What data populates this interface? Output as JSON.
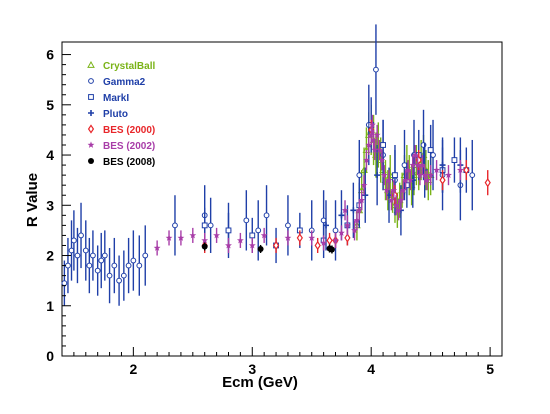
{
  "chart_data": {
    "type": "scatter",
    "title": "",
    "xlabel": "Ecm (GeV)",
    "ylabel": "R Value",
    "xlim": [
      1.4,
      5.1
    ],
    "ylim": [
      0,
      6.25
    ],
    "xticks": [
      2,
      3,
      4,
      5
    ],
    "yticks": [
      0,
      1,
      2,
      3,
      4,
      5,
      6
    ],
    "grid": false,
    "legend_position": "top-left",
    "series": [
      {
        "name": "CrystalBall",
        "color": "#7ab317",
        "marker": "triangle",
        "points": [
          [
            3.88,
            2.6,
            0.3
          ],
          [
            3.9,
            2.9,
            0.35
          ],
          [
            3.92,
            3.3,
            0.4
          ],
          [
            3.94,
            3.7,
            0.45
          ],
          [
            3.96,
            4.1,
            0.45
          ],
          [
            3.98,
            4.4,
            0.45
          ],
          [
            4.0,
            4.5,
            0.5
          ],
          [
            4.02,
            4.3,
            0.5
          ],
          [
            4.04,
            4.0,
            0.45
          ],
          [
            4.06,
            4.2,
            0.45
          ],
          [
            4.08,
            3.9,
            0.45
          ],
          [
            4.1,
            3.7,
            0.4
          ],
          [
            4.12,
            3.5,
            0.4
          ],
          [
            4.14,
            3.3,
            0.4
          ],
          [
            4.16,
            3.6,
            0.4
          ],
          [
            4.18,
            3.2,
            0.35
          ],
          [
            4.2,
            3.0,
            0.35
          ],
          [
            4.22,
            2.9,
            0.35
          ],
          [
            4.24,
            3.1,
            0.35
          ],
          [
            4.26,
            3.3,
            0.35
          ],
          [
            4.28,
            3.6,
            0.4
          ],
          [
            4.3,
            3.8,
            0.4
          ],
          [
            4.32,
            3.6,
            0.4
          ],
          [
            4.34,
            3.4,
            0.4
          ],
          [
            4.36,
            3.6,
            0.4
          ],
          [
            4.38,
            3.8,
            0.4
          ],
          [
            4.4,
            3.7,
            0.4
          ],
          [
            4.42,
            3.9,
            0.4
          ],
          [
            4.44,
            4.0,
            0.4
          ],
          [
            4.46,
            3.7,
            0.4
          ],
          [
            4.48,
            3.5,
            0.4
          ],
          [
            4.5,
            3.6,
            0.4
          ]
        ]
      },
      {
        "name": "Gamma2",
        "color": "#1f3fa8",
        "marker": "circle",
        "points": [
          [
            1.42,
            1.45,
            0.45
          ],
          [
            1.45,
            1.8,
            0.55
          ],
          [
            1.48,
            2.1,
            0.6
          ],
          [
            1.5,
            2.3,
            0.6
          ],
          [
            1.53,
            2.0,
            0.55
          ],
          [
            1.56,
            2.4,
            0.65
          ],
          [
            1.6,
            2.1,
            0.6
          ],
          [
            1.63,
            1.8,
            0.55
          ],
          [
            1.66,
            2.0,
            0.5
          ],
          [
            1.7,
            1.7,
            0.5
          ],
          [
            1.73,
            1.9,
            0.55
          ],
          [
            1.76,
            2.0,
            0.5
          ],
          [
            1.8,
            1.6,
            0.55
          ],
          [
            1.84,
            1.8,
            0.55
          ],
          [
            1.88,
            1.5,
            0.5
          ],
          [
            1.92,
            1.6,
            0.5
          ],
          [
            1.96,
            1.8,
            0.55
          ],
          [
            2.0,
            1.9,
            0.6
          ],
          [
            2.05,
            1.8,
            0.6
          ],
          [
            2.1,
            2.0,
            0.6
          ],
          [
            2.35,
            2.6,
            0.6
          ],
          [
            2.6,
            2.8,
            0.6
          ],
          [
            2.65,
            2.6,
            0.55
          ],
          [
            2.8,
            2.5,
            0.55
          ],
          [
            2.95,
            2.7,
            0.6
          ],
          [
            3.05,
            2.5,
            0.6
          ],
          [
            3.12,
            2.8,
            0.6
          ],
          [
            3.3,
            2.6,
            0.6
          ],
          [
            3.5,
            2.5,
            0.6
          ],
          [
            3.6,
            2.7,
            0.6
          ],
          [
            3.7,
            2.5,
            0.6
          ],
          [
            3.9,
            3.6,
            0.7
          ],
          [
            3.98,
            4.6,
            0.8
          ],
          [
            4.04,
            5.7,
            0.9
          ],
          [
            4.1,
            4.0,
            0.7
          ],
          [
            4.2,
            3.5,
            0.7
          ],
          [
            4.28,
            3.8,
            0.7
          ],
          [
            4.36,
            4.0,
            0.7
          ],
          [
            4.44,
            4.2,
            0.7
          ],
          [
            4.52,
            4.0,
            0.7
          ],
          [
            4.6,
            3.6,
            0.7
          ],
          [
            4.75,
            3.4,
            0.7
          ],
          [
            4.85,
            3.6,
            0.7
          ]
        ]
      },
      {
        "name": "MarkI",
        "color": "#1f3fa8",
        "marker": "square",
        "points": [
          [
            2.6,
            2.6,
            0.35
          ],
          [
            2.8,
            2.5,
            0.35
          ],
          [
            3.0,
            2.4,
            0.35
          ],
          [
            3.2,
            2.2,
            0.35
          ],
          [
            3.4,
            2.5,
            0.35
          ],
          [
            3.6,
            2.3,
            0.35
          ],
          [
            3.8,
            2.6,
            0.4
          ],
          [
            3.9,
            3.0,
            0.45
          ],
          [
            4.0,
            4.6,
            0.55
          ],
          [
            4.1,
            4.2,
            0.5
          ],
          [
            4.2,
            3.6,
            0.5
          ],
          [
            4.3,
            3.4,
            0.45
          ],
          [
            4.4,
            4.0,
            0.5
          ],
          [
            4.5,
            4.1,
            0.5
          ],
          [
            4.6,
            3.7,
            0.45
          ],
          [
            4.7,
            3.9,
            0.45
          ],
          [
            4.8,
            3.7,
            0.45
          ]
        ]
      },
      {
        "name": "Pluto",
        "color": "#1f3fa8",
        "marker": "cross",
        "points": [
          [
            3.62,
            2.6,
            0.5
          ],
          [
            3.75,
            2.8,
            0.5
          ],
          [
            3.85,
            2.9,
            0.55
          ],
          [
            3.95,
            3.2,
            0.55
          ],
          [
            4.05,
            3.6,
            0.6
          ],
          [
            4.15,
            3.2,
            0.55
          ],
          [
            4.25,
            2.9,
            0.5
          ],
          [
            4.35,
            3.5,
            0.55
          ],
          [
            4.45,
            3.7,
            0.55
          ],
          [
            4.6,
            3.8,
            0.55
          ],
          [
            4.75,
            3.8,
            0.55
          ]
        ]
      },
      {
        "name": "BES (2000)",
        "color": "#e8262a",
        "marker": "diamond",
        "points": [
          [
            2.6,
            2.2,
            0.15
          ],
          [
            3.2,
            2.2,
            0.15
          ],
          [
            3.4,
            2.35,
            0.15
          ],
          [
            3.55,
            2.2,
            0.15
          ],
          [
            3.65,
            2.3,
            0.15
          ],
          [
            3.7,
            2.3,
            0.15
          ],
          [
            3.8,
            2.35,
            0.15
          ],
          [
            4.0,
            4.5,
            0.2
          ],
          [
            4.2,
            3.2,
            0.2
          ],
          [
            4.4,
            3.9,
            0.2
          ],
          [
            4.6,
            3.5,
            0.2
          ],
          [
            4.8,
            3.7,
            0.2
          ],
          [
            4.98,
            3.45,
            0.25
          ]
        ]
      },
      {
        "name": "BES (2002)",
        "color": "#a83da8",
        "marker": "star",
        "points": [
          [
            2.2,
            2.15,
            0.15
          ],
          [
            2.3,
            2.35,
            0.15
          ],
          [
            2.4,
            2.35,
            0.15
          ],
          [
            2.5,
            2.4,
            0.15
          ],
          [
            2.6,
            2.3,
            0.15
          ],
          [
            2.7,
            2.4,
            0.15
          ],
          [
            2.8,
            2.2,
            0.15
          ],
          [
            2.9,
            2.3,
            0.15
          ],
          [
            3.0,
            2.2,
            0.15
          ],
          [
            3.1,
            2.4,
            0.15
          ],
          [
            3.3,
            2.35,
            0.15
          ],
          [
            3.5,
            2.35,
            0.15
          ],
          [
            3.6,
            2.25,
            0.15
          ],
          [
            3.7,
            2.3,
            0.15
          ],
          [
            3.75,
            2.45,
            0.15
          ],
          [
            3.78,
            2.9,
            0.2
          ],
          [
            3.8,
            2.6,
            0.2
          ],
          [
            3.86,
            2.5,
            0.2
          ],
          [
            3.88,
            2.7,
            0.2
          ],
          [
            3.9,
            2.9,
            0.2
          ],
          [
            3.92,
            3.1,
            0.2
          ],
          [
            3.94,
            3.4,
            0.2
          ],
          [
            3.96,
            3.9,
            0.2
          ],
          [
            3.98,
            4.2,
            0.2
          ],
          [
            4.0,
            4.4,
            0.2
          ],
          [
            4.01,
            4.6,
            0.2
          ],
          [
            4.02,
            4.3,
            0.2
          ],
          [
            4.03,
            4.1,
            0.2
          ],
          [
            4.05,
            4.4,
            0.2
          ],
          [
            4.07,
            4.1,
            0.2
          ],
          [
            4.09,
            3.9,
            0.2
          ],
          [
            4.11,
            3.6,
            0.2
          ],
          [
            4.13,
            3.3,
            0.2
          ],
          [
            4.15,
            3.5,
            0.2
          ],
          [
            4.17,
            3.1,
            0.2
          ],
          [
            4.19,
            3.3,
            0.2
          ],
          [
            4.21,
            3.0,
            0.2
          ],
          [
            4.23,
            2.9,
            0.2
          ],
          [
            4.25,
            3.1,
            0.2
          ],
          [
            4.27,
            3.3,
            0.2
          ],
          [
            4.29,
            3.5,
            0.2
          ],
          [
            4.31,
            3.7,
            0.2
          ],
          [
            4.33,
            3.5,
            0.2
          ],
          [
            4.35,
            3.8,
            0.2
          ],
          [
            4.37,
            4.0,
            0.2
          ],
          [
            4.39,
            3.8,
            0.2
          ],
          [
            4.41,
            3.6,
            0.2
          ],
          [
            4.43,
            3.8,
            0.2
          ],
          [
            4.45,
            3.6,
            0.2
          ],
          [
            4.47,
            3.5,
            0.2
          ],
          [
            4.5,
            3.6,
            0.2
          ],
          [
            4.55,
            3.7,
            0.2
          ],
          [
            4.65,
            3.6,
            0.2
          ],
          [
            4.75,
            3.7,
            0.2
          ]
        ]
      },
      {
        "name": "BES (2008)",
        "color": "#000000",
        "marker": "filled-circle",
        "points": [
          [
            2.6,
            2.18,
            0.08
          ],
          [
            3.07,
            2.13,
            0.08
          ],
          [
            3.65,
            2.14,
            0.08
          ],
          [
            3.67,
            2.12,
            0.08
          ]
        ]
      }
    ]
  }
}
